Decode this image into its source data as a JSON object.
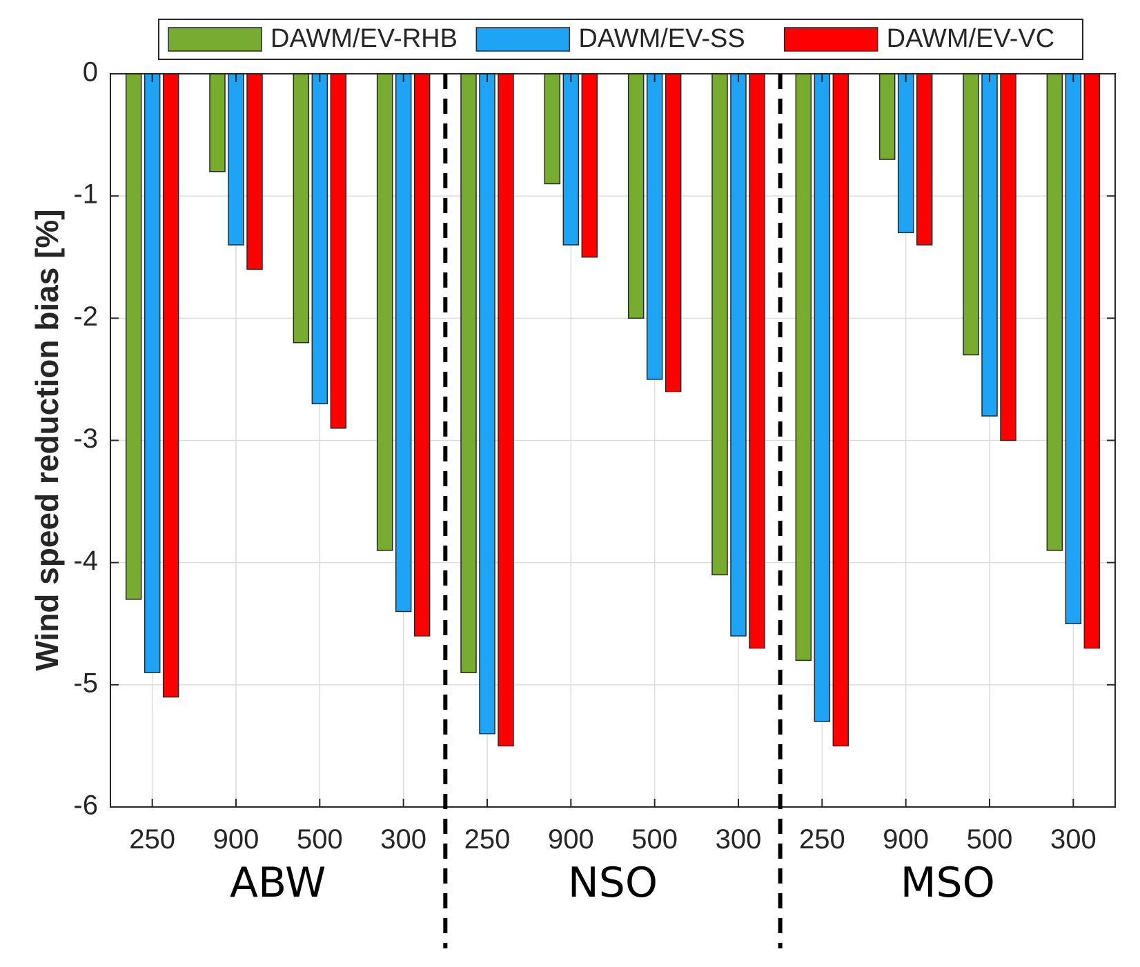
{
  "chart_data": {
    "type": "bar",
    "ylabel": "Wind speed reduction bias [%]",
    "xlabel": "",
    "ylim": [
      -6,
      0
    ],
    "yticks": [
      0,
      -1,
      -2,
      -3,
      -4,
      -5,
      -6
    ],
    "categories": [
      "250",
      "900",
      "500",
      "300",
      "250",
      "900",
      "500",
      "300",
      "250",
      "900",
      "500",
      "300"
    ],
    "groups": [
      "ABW",
      "NSO",
      "MSO"
    ],
    "grid": true,
    "legend_position": "top",
    "series": [
      {
        "name": "DAWM/EV-RHB",
        "color": "#77AC30",
        "values": [
          -4.3,
          -0.8,
          -2.2,
          -3.9,
          -4.9,
          -0.9,
          -2.0,
          -4.1,
          -4.8,
          -0.7,
          -2.3,
          -3.9
        ]
      },
      {
        "name": "DAWM/EV-SS",
        "color": "#1FA3F5",
        "values": [
          -4.9,
          -1.4,
          -2.7,
          -4.4,
          -5.4,
          -1.4,
          -2.5,
          -4.6,
          -5.3,
          -1.3,
          -2.8,
          -4.5
        ]
      },
      {
        "name": "DAWM/EV-VC",
        "color": "#FF0000",
        "values": [
          -5.1,
          -1.6,
          -2.9,
          -4.6,
          -5.5,
          -1.5,
          -2.6,
          -4.7,
          -5.5,
          -1.4,
          -3.0,
          -4.7
        ]
      }
    ]
  }
}
